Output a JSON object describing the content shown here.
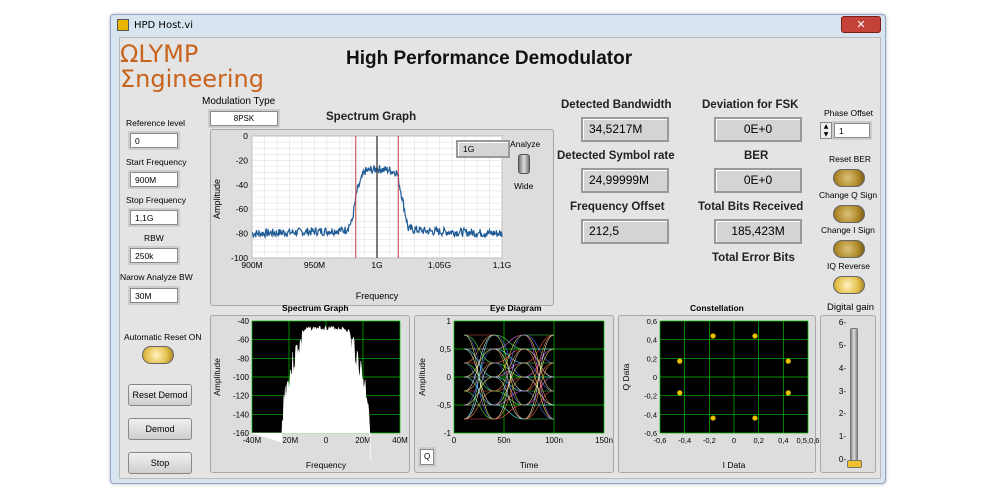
{
  "window": {
    "title": "HPD Host.vi",
    "close_glyph": "✕"
  },
  "logo": {
    "line1": "ΩLYMP",
    "line2": "Ʃngineering"
  },
  "main_title": "High Performance Demodulator",
  "modulation": {
    "label": "Modulation Type",
    "value": "8PSK"
  },
  "left_controls": {
    "reference_level": {
      "label": "Reference level",
      "value": "0"
    },
    "start_frequency": {
      "label": "Start Frequency",
      "value": "900M"
    },
    "stop_frequency": {
      "label": "Stop Frequency",
      "value": "1,1G"
    },
    "rbw": {
      "label": "RBW",
      "value": "250k"
    },
    "narrow_bw": {
      "label": "Narow Analyze BW",
      "value": "30M"
    },
    "auto_reset": {
      "label": "Automatic Reset ON"
    }
  },
  "buttons": {
    "reset_demod": "Reset Demod",
    "demod": "Demod",
    "stop": "Stop"
  },
  "analyze": {
    "top": "Analyze",
    "bottom": "Wide"
  },
  "measurements": {
    "detected_bandwidth": {
      "label": "Detected Bandwidth",
      "value": "34,5217M"
    },
    "detected_symbol_rate": {
      "label": "Detected Symbol rate",
      "value": "24,99999M"
    },
    "frequency_offset": {
      "label": "Frequency Offset",
      "value": "212,5"
    },
    "deviation_fsk": {
      "label": "Deviation for FSK",
      "value": "0E+0"
    },
    "ber": {
      "label": "BER",
      "value": "0E+0"
    },
    "total_bits_received": {
      "label": "Total Bits Received",
      "value": "185,423M"
    },
    "total_error_bits": {
      "label": "Total Error Bits"
    }
  },
  "phase_offset": {
    "label": "Phase Offset",
    "value": "1"
  },
  "right_toggles": {
    "reset_ber": "Reset BER",
    "change_q_sign": "Change Q Sign",
    "change_i_sign": "Change I  Sign",
    "iq_reverse": "IQ Reverse"
  },
  "digital_gain": {
    "label": "Digital gain",
    "ticks": [
      "6-",
      "5-",
      "4-",
      "3-",
      "2-",
      "1-",
      "0-"
    ],
    "level": 0
  },
  "colors": {
    "trace": "#1f5c96",
    "plot_bg": "#000000",
    "grid": "#00c000",
    "marker": "#e8c000",
    "limit_line": "#c84040"
  },
  "chart_data": [
    {
      "type": "line",
      "title": "Spectrum Graph",
      "xlabel": "Frequency",
      "ylabel": "Amplitude",
      "x_ticks": [
        "900M",
        "950M",
        "1G",
        "1,05G",
        "1,1G"
      ],
      "y_ticks": [
        "0",
        "-20",
        "-40",
        "-60",
        "-80",
        "-100"
      ],
      "ylim": [
        -100,
        0
      ],
      "xlim": [
        900,
        1100
      ],
      "x_unit": "MHz",
      "marker_value": "1G",
      "series": [
        {
          "x": [
            900,
            930,
            960,
            975,
            980,
            984,
            990,
            1000,
            1010,
            1016,
            1020,
            1025,
            1040,
            1070,
            1100
          ],
          "y": [
            -80,
            -79,
            -78,
            -77,
            -70,
            -45,
            -29,
            -27,
            -28,
            -30,
            -50,
            -76,
            -78,
            -79,
            -80
          ]
        }
      ],
      "limit_lines_x": [
        983,
        1017
      ],
      "center_line_x": 1000
    },
    {
      "type": "area",
      "title": "Spectrum Graph",
      "xlabel": "Frequency",
      "ylabel": "Amplitude",
      "x_ticks": [
        "-40M",
        "-20M",
        "0",
        "20M",
        "40M"
      ],
      "y_ticks": [
        "-40",
        "-60",
        "-80",
        "-100",
        "-120",
        "-140",
        "-160"
      ],
      "xlim": [
        -40,
        40
      ],
      "ylim": [
        -160,
        -40
      ],
      "x_unit": "MHz",
      "series": [
        {
          "x": [
            -40,
            -24,
            -23,
            -19,
            -15,
            -10,
            0,
            10,
            15,
            19,
            23,
            24,
            40
          ],
          "y": [
            -160,
            -160,
            -110,
            -80,
            -52,
            -46,
            -45,
            -46,
            -52,
            -80,
            -110,
            -160,
            -160
          ]
        }
      ]
    },
    {
      "type": "line",
      "title": "Eye Diagram",
      "xlabel": "Time",
      "ylabel": "Amplitude",
      "x_ticks": [
        "0",
        "50n",
        "100n",
        "150n"
      ],
      "y_ticks": [
        "1",
        "0,5",
        "0",
        "-0,5",
        "-1"
      ],
      "xlim": [
        0,
        150
      ],
      "ylim": [
        -1,
        1
      ],
      "x_unit": "ns",
      "levels": [
        0.75,
        0.5,
        0.25,
        0,
        -0.25,
        -0.5,
        -0.75
      ],
      "x_range": [
        10,
        100
      ],
      "button_label": "Q"
    },
    {
      "type": "scatter",
      "title": "Constellation",
      "xlabel": "I Data",
      "ylabel": "Q Data",
      "x_ticks": [
        "-0,6",
        "-0,4",
        "-0,2",
        "0",
        "0,2",
        "0,4",
        "0,5,0,6"
      ],
      "y_ticks": [
        "0,6",
        "0,4",
        "0,2",
        "0",
        "-0,2",
        "-0,4",
        "-0,6"
      ],
      "xlim": [
        -0.6,
        0.6
      ],
      "ylim": [
        -0.6,
        0.6
      ],
      "points": [
        [
          -0.17,
          0.44
        ],
        [
          0.17,
          0.44
        ],
        [
          -0.44,
          0.17
        ],
        [
          0.44,
          0.17
        ],
        [
          -0.44,
          -0.17
        ],
        [
          0.44,
          -0.17
        ],
        [
          -0.17,
          -0.44
        ],
        [
          0.17,
          -0.44
        ]
      ]
    }
  ]
}
